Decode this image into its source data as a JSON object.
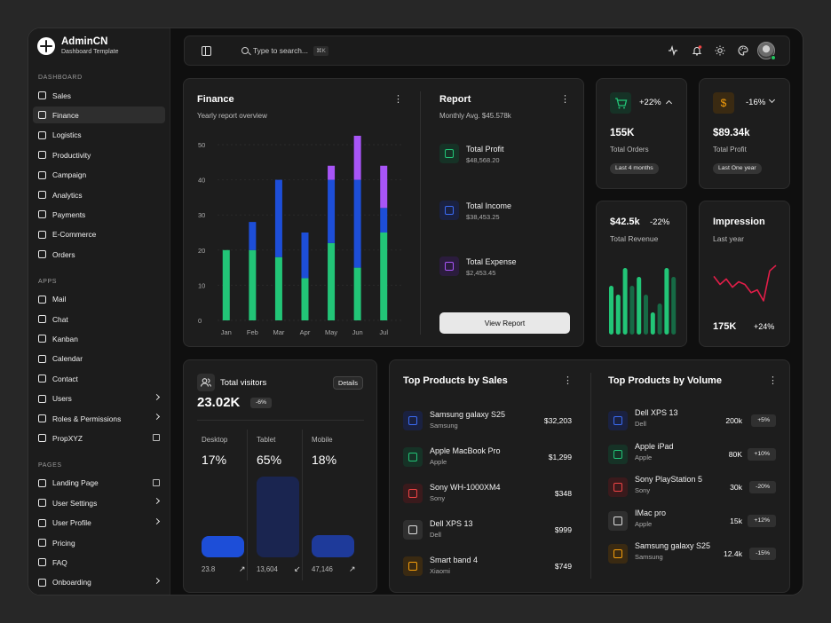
{
  "brand": {
    "title": "AdminCN",
    "subtitle": "Dashboard Template"
  },
  "sidebar": {
    "sections": [
      {
        "label": "DASHBOARD",
        "items": [
          {
            "label": "Sales",
            "icon": "trend-icon"
          },
          {
            "label": "Finance",
            "icon": "banknote-icon",
            "active": true
          },
          {
            "label": "Logistics",
            "icon": "truck-icon"
          },
          {
            "label": "Productivity",
            "icon": "briefcase-icon"
          },
          {
            "label": "Campaign",
            "icon": "megaphone-icon"
          },
          {
            "label": "Analytics",
            "icon": "bar-chart-icon"
          },
          {
            "label": "Payments",
            "icon": "credit-card-icon"
          },
          {
            "label": "E-Commerce",
            "icon": "cart-icon"
          },
          {
            "label": "Orders",
            "icon": "package-icon"
          }
        ]
      },
      {
        "label": "APPS",
        "items": [
          {
            "label": "Mail",
            "icon": "mail-icon"
          },
          {
            "label": "Chat",
            "icon": "chat-icon"
          },
          {
            "label": "Kanban",
            "icon": "kanban-icon"
          },
          {
            "label": "Calendar",
            "icon": "calendar-icon"
          },
          {
            "label": "Contact",
            "icon": "contact-icon"
          },
          {
            "label": "Users",
            "icon": "users-icon",
            "arrow": true
          },
          {
            "label": "Roles & Permissions",
            "icon": "shield-icon",
            "arrow": true
          },
          {
            "label": "PropXYZ",
            "icon": "globe-icon",
            "external": true
          }
        ]
      },
      {
        "label": "PAGES",
        "items": [
          {
            "label": "Landing Page",
            "icon": "rocket-icon",
            "external": true
          },
          {
            "label": "User Settings",
            "icon": "user-cog-icon",
            "arrow": true
          },
          {
            "label": "User Profile",
            "icon": "user-icon",
            "arrow": true
          },
          {
            "label": "Pricing",
            "icon": "badge-dollar-icon"
          },
          {
            "label": "FAQ",
            "icon": "help-circle-icon"
          },
          {
            "label": "Onboarding",
            "icon": "flag-icon",
            "arrow": true
          }
        ]
      }
    ]
  },
  "header": {
    "search_placeholder": "Type to search...",
    "search_shortcut": "⌘K"
  },
  "finance": {
    "title": "Finance",
    "subtitle": "Yearly report overview"
  },
  "chart_data": {
    "type": "bar",
    "stacked": true,
    "categories": [
      "Jan",
      "Feb",
      "Mar",
      "Apr",
      "May",
      "Jun",
      "Jul"
    ],
    "series": [
      {
        "values": [
          20,
          20,
          18,
          12,
          22,
          15,
          25
        ],
        "color": "#22c577"
      },
      {
        "values": [
          0,
          8,
          22,
          13,
          18,
          25,
          7
        ],
        "color": "#1d4ed8"
      },
      {
        "values": [
          0,
          0,
          0,
          0,
          4,
          13,
          12
        ],
        "color": "#a855f7"
      }
    ],
    "yticks": [
      0,
      10,
      20,
      30,
      40,
      50
    ],
    "ylim": [
      0,
      50
    ],
    "grid": true,
    "legend": "none"
  },
  "report": {
    "title": "Report",
    "subtitle": "Monthly Avg. $45.578k",
    "rows": [
      {
        "label": "Total Profit",
        "value": "$48,568.20",
        "icon": "dollar-icon",
        "color": "#22c577",
        "bg": "#163226"
      },
      {
        "label": "Total Income",
        "value": "$38,453.25",
        "icon": "wallet-icon",
        "color": "#3b6cf5",
        "bg": "#1a2140"
      },
      {
        "label": "Total Expense",
        "value": "$2,453.45",
        "icon": "credit-card-icon",
        "color": "#a855f7",
        "bg": "#2b1c3d"
      }
    ],
    "button": "View Report"
  },
  "stat_orders": {
    "change": "+22%",
    "value": "155K",
    "label": "Total Orders",
    "badge": "Last 4 months",
    "icon_color": "#22c577"
  },
  "stat_profit": {
    "change": "-16%",
    "value": "$89.34k",
    "label": "Total Profit",
    "badge": "Last One year",
    "icon_color": "#f59e0b"
  },
  "revenue": {
    "value": "$42.5k",
    "change": "-22%",
    "label": "Total Revenue",
    "bars": [
      {
        "value": 0.55,
        "style": "bright"
      },
      {
        "value": 0.45,
        "style": "bright"
      },
      {
        "value": 0.75,
        "style": "bright"
      },
      {
        "value": 0.55,
        "style": "dark"
      },
      {
        "value": 0.65,
        "style": "bright"
      },
      {
        "value": 0.45,
        "style": "dark"
      },
      {
        "value": 0.25,
        "style": "bright"
      },
      {
        "value": 0.35,
        "style": "dark"
      },
      {
        "value": 0.75,
        "style": "bright"
      },
      {
        "value": 0.65,
        "style": "dark"
      }
    ]
  },
  "impression": {
    "title": "Impression",
    "subtitle": "Last year",
    "value": "175K",
    "change": "+24%",
    "line": [
      20,
      14,
      18,
      12,
      16,
      14,
      8,
      10,
      2,
      24,
      28
    ]
  },
  "visitors": {
    "title": "Total visitors",
    "details": "Details",
    "value": "23.02K",
    "change": "-6%",
    "columns": [
      {
        "label": "Desktop",
        "percent": "17%",
        "count": "23.8",
        "fill": 0.17,
        "color": "#1d4ed8"
      },
      {
        "label": "Tablet",
        "percent": "65%",
        "count": "13,604",
        "fill": 0.65,
        "color": "#1a2550"
      },
      {
        "label": "Mobile",
        "percent": "18%",
        "count": "47,146",
        "fill": 0.18,
        "color": "#1e3a9a"
      }
    ]
  },
  "products_sales": {
    "title": "Top Products by Sales",
    "items": [
      {
        "name": "Samsung galaxy S25",
        "brand": "Samsung",
        "value": "$32,203",
        "icon": "phone-icon",
        "color": "#3b6cf5",
        "bg": "#1a2140"
      },
      {
        "name": "Apple MacBook Pro",
        "brand": "Apple",
        "value": "$1,299",
        "icon": "laptop-icon",
        "color": "#22c577",
        "bg": "#163226"
      },
      {
        "name": "Sony WH-1000XM4",
        "brand": "Sony",
        "value": "$348",
        "icon": "headphones-icon",
        "color": "#ef4444",
        "bg": "#3a1a1c"
      },
      {
        "name": "Dell XPS 13",
        "brand": "Dell",
        "value": "$999",
        "icon": "laptop-icon",
        "color": "#dddddd",
        "bg": "#2f2f2f"
      },
      {
        "name": "Smart band 4",
        "brand": "Xiaomi",
        "value": "$749",
        "icon": "watch-icon",
        "color": "#f59e0b",
        "bg": "#3a2a12"
      }
    ]
  },
  "products_volume": {
    "title": "Top Products by Volume",
    "items": [
      {
        "name": "Dell XPS 13",
        "brand": "Dell",
        "count": "200k",
        "change": "+5%",
        "icon": "laptop-icon",
        "color": "#3b6cf5",
        "bg": "#1a2140"
      },
      {
        "name": "Apple iPad",
        "brand": "Apple",
        "count": "80K",
        "change": "+10%",
        "icon": "tablet-icon",
        "color": "#22c577",
        "bg": "#163226"
      },
      {
        "name": "Sony PlayStation 5",
        "brand": "Sony",
        "count": "30k",
        "change": "-20%",
        "icon": "gamepad-icon",
        "color": "#ef4444",
        "bg": "#3a1a1c"
      },
      {
        "name": "IMac pro",
        "brand": "Apple",
        "count": "15k",
        "change": "+12%",
        "icon": "monitor-icon",
        "color": "#dddddd",
        "bg": "#2f2f2f"
      },
      {
        "name": "Samsung galaxy S25",
        "brand": "Samsung",
        "count": "12.4k",
        "change": "-15%",
        "icon": "phone-icon",
        "color": "#f59e0b",
        "bg": "#3a2a12"
      }
    ]
  }
}
